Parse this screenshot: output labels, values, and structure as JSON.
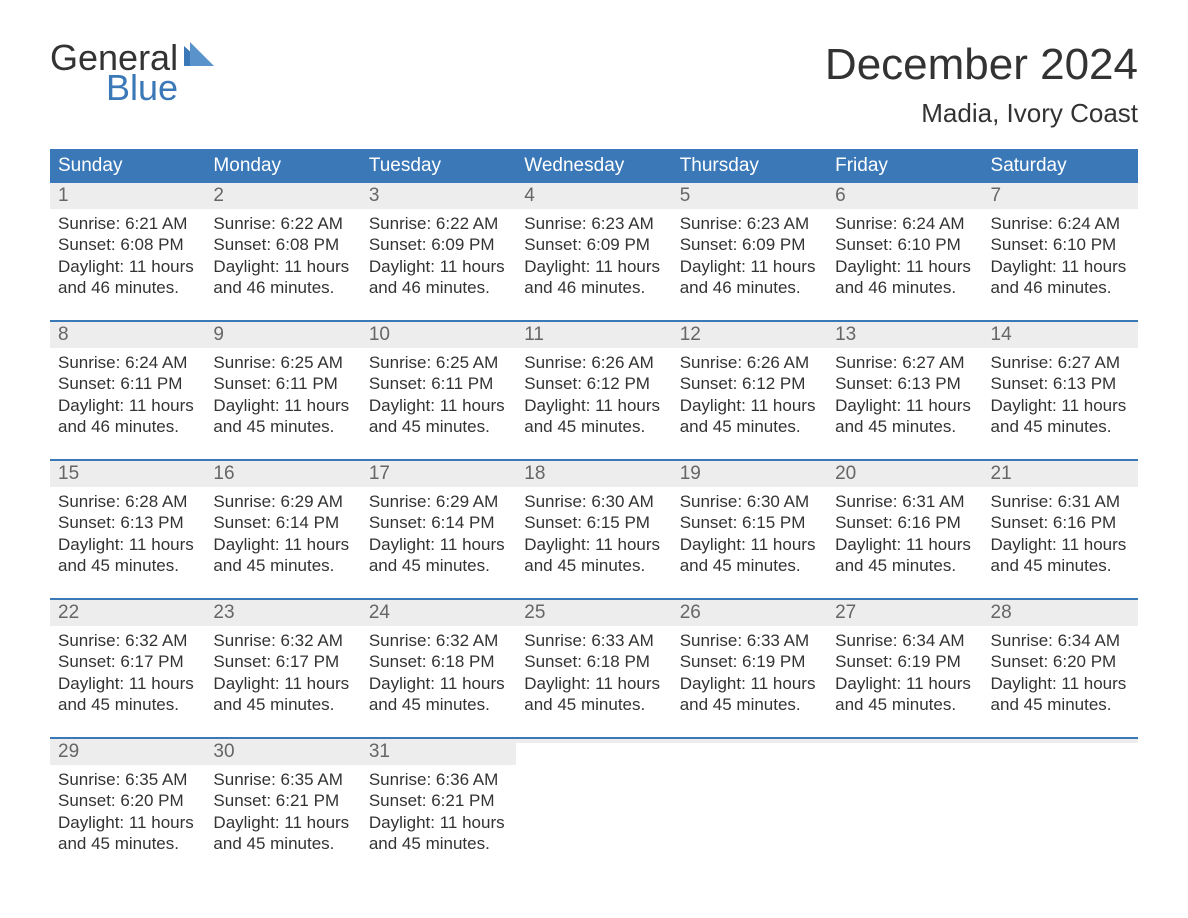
{
  "brand": {
    "word1": "General",
    "word2": "Blue",
    "text_color_dark": "#333333",
    "text_color_accent": "#3b78b8"
  },
  "title": {
    "month": "December 2024",
    "location": "Madia, Ivory Coast"
  },
  "style": {
    "header_bg": "#3b78b8",
    "header_text": "#ffffff",
    "daynum_bg": "#ededed",
    "daynum_color": "#666666",
    "body_text": "#333333",
    "week_divider": "#3b78b8",
    "page_bg": "#ffffff",
    "header_fontsize": 19,
    "body_fontsize": 17,
    "title_fontsize": 44,
    "location_fontsize": 26
  },
  "day_headers": [
    "Sunday",
    "Monday",
    "Tuesday",
    "Wednesday",
    "Thursday",
    "Friday",
    "Saturday"
  ],
  "weeks": [
    [
      {
        "n": "1",
        "sunrise": "Sunrise: 6:21 AM",
        "sunset": "Sunset: 6:08 PM",
        "d1": "Daylight: 11 hours",
        "d2": "and 46 minutes."
      },
      {
        "n": "2",
        "sunrise": "Sunrise: 6:22 AM",
        "sunset": "Sunset: 6:08 PM",
        "d1": "Daylight: 11 hours",
        "d2": "and 46 minutes."
      },
      {
        "n": "3",
        "sunrise": "Sunrise: 6:22 AM",
        "sunset": "Sunset: 6:09 PM",
        "d1": "Daylight: 11 hours",
        "d2": "and 46 minutes."
      },
      {
        "n": "4",
        "sunrise": "Sunrise: 6:23 AM",
        "sunset": "Sunset: 6:09 PM",
        "d1": "Daylight: 11 hours",
        "d2": "and 46 minutes."
      },
      {
        "n": "5",
        "sunrise": "Sunrise: 6:23 AM",
        "sunset": "Sunset: 6:09 PM",
        "d1": "Daylight: 11 hours",
        "d2": "and 46 minutes."
      },
      {
        "n": "6",
        "sunrise": "Sunrise: 6:24 AM",
        "sunset": "Sunset: 6:10 PM",
        "d1": "Daylight: 11 hours",
        "d2": "and 46 minutes."
      },
      {
        "n": "7",
        "sunrise": "Sunrise: 6:24 AM",
        "sunset": "Sunset: 6:10 PM",
        "d1": "Daylight: 11 hours",
        "d2": "and 46 minutes."
      }
    ],
    [
      {
        "n": "8",
        "sunrise": "Sunrise: 6:24 AM",
        "sunset": "Sunset: 6:11 PM",
        "d1": "Daylight: 11 hours",
        "d2": "and 46 minutes."
      },
      {
        "n": "9",
        "sunrise": "Sunrise: 6:25 AM",
        "sunset": "Sunset: 6:11 PM",
        "d1": "Daylight: 11 hours",
        "d2": "and 45 minutes."
      },
      {
        "n": "10",
        "sunrise": "Sunrise: 6:25 AM",
        "sunset": "Sunset: 6:11 PM",
        "d1": "Daylight: 11 hours",
        "d2": "and 45 minutes."
      },
      {
        "n": "11",
        "sunrise": "Sunrise: 6:26 AM",
        "sunset": "Sunset: 6:12 PM",
        "d1": "Daylight: 11 hours",
        "d2": "and 45 minutes."
      },
      {
        "n": "12",
        "sunrise": "Sunrise: 6:26 AM",
        "sunset": "Sunset: 6:12 PM",
        "d1": "Daylight: 11 hours",
        "d2": "and 45 minutes."
      },
      {
        "n": "13",
        "sunrise": "Sunrise: 6:27 AM",
        "sunset": "Sunset: 6:13 PM",
        "d1": "Daylight: 11 hours",
        "d2": "and 45 minutes."
      },
      {
        "n": "14",
        "sunrise": "Sunrise: 6:27 AM",
        "sunset": "Sunset: 6:13 PM",
        "d1": "Daylight: 11 hours",
        "d2": "and 45 minutes."
      }
    ],
    [
      {
        "n": "15",
        "sunrise": "Sunrise: 6:28 AM",
        "sunset": "Sunset: 6:13 PM",
        "d1": "Daylight: 11 hours",
        "d2": "and 45 minutes."
      },
      {
        "n": "16",
        "sunrise": "Sunrise: 6:29 AM",
        "sunset": "Sunset: 6:14 PM",
        "d1": "Daylight: 11 hours",
        "d2": "and 45 minutes."
      },
      {
        "n": "17",
        "sunrise": "Sunrise: 6:29 AM",
        "sunset": "Sunset: 6:14 PM",
        "d1": "Daylight: 11 hours",
        "d2": "and 45 minutes."
      },
      {
        "n": "18",
        "sunrise": "Sunrise: 6:30 AM",
        "sunset": "Sunset: 6:15 PM",
        "d1": "Daylight: 11 hours",
        "d2": "and 45 minutes."
      },
      {
        "n": "19",
        "sunrise": "Sunrise: 6:30 AM",
        "sunset": "Sunset: 6:15 PM",
        "d1": "Daylight: 11 hours",
        "d2": "and 45 minutes."
      },
      {
        "n": "20",
        "sunrise": "Sunrise: 6:31 AM",
        "sunset": "Sunset: 6:16 PM",
        "d1": "Daylight: 11 hours",
        "d2": "and 45 minutes."
      },
      {
        "n": "21",
        "sunrise": "Sunrise: 6:31 AM",
        "sunset": "Sunset: 6:16 PM",
        "d1": "Daylight: 11 hours",
        "d2": "and 45 minutes."
      }
    ],
    [
      {
        "n": "22",
        "sunrise": "Sunrise: 6:32 AM",
        "sunset": "Sunset: 6:17 PM",
        "d1": "Daylight: 11 hours",
        "d2": "and 45 minutes."
      },
      {
        "n": "23",
        "sunrise": "Sunrise: 6:32 AM",
        "sunset": "Sunset: 6:17 PM",
        "d1": "Daylight: 11 hours",
        "d2": "and 45 minutes."
      },
      {
        "n": "24",
        "sunrise": "Sunrise: 6:32 AM",
        "sunset": "Sunset: 6:18 PM",
        "d1": "Daylight: 11 hours",
        "d2": "and 45 minutes."
      },
      {
        "n": "25",
        "sunrise": "Sunrise: 6:33 AM",
        "sunset": "Sunset: 6:18 PM",
        "d1": "Daylight: 11 hours",
        "d2": "and 45 minutes."
      },
      {
        "n": "26",
        "sunrise": "Sunrise: 6:33 AM",
        "sunset": "Sunset: 6:19 PM",
        "d1": "Daylight: 11 hours",
        "d2": "and 45 minutes."
      },
      {
        "n": "27",
        "sunrise": "Sunrise: 6:34 AM",
        "sunset": "Sunset: 6:19 PM",
        "d1": "Daylight: 11 hours",
        "d2": "and 45 minutes."
      },
      {
        "n": "28",
        "sunrise": "Sunrise: 6:34 AM",
        "sunset": "Sunset: 6:20 PM",
        "d1": "Daylight: 11 hours",
        "d2": "and 45 minutes."
      }
    ],
    [
      {
        "n": "29",
        "sunrise": "Sunrise: 6:35 AM",
        "sunset": "Sunset: 6:20 PM",
        "d1": "Daylight: 11 hours",
        "d2": "and 45 minutes."
      },
      {
        "n": "30",
        "sunrise": "Sunrise: 6:35 AM",
        "sunset": "Sunset: 6:21 PM",
        "d1": "Daylight: 11 hours",
        "d2": "and 45 minutes."
      },
      {
        "n": "31",
        "sunrise": "Sunrise: 6:36 AM",
        "sunset": "Sunset: 6:21 PM",
        "d1": "Daylight: 11 hours",
        "d2": "and 45 minutes."
      },
      {
        "empty": true
      },
      {
        "empty": true
      },
      {
        "empty": true
      },
      {
        "empty": true
      }
    ]
  ]
}
